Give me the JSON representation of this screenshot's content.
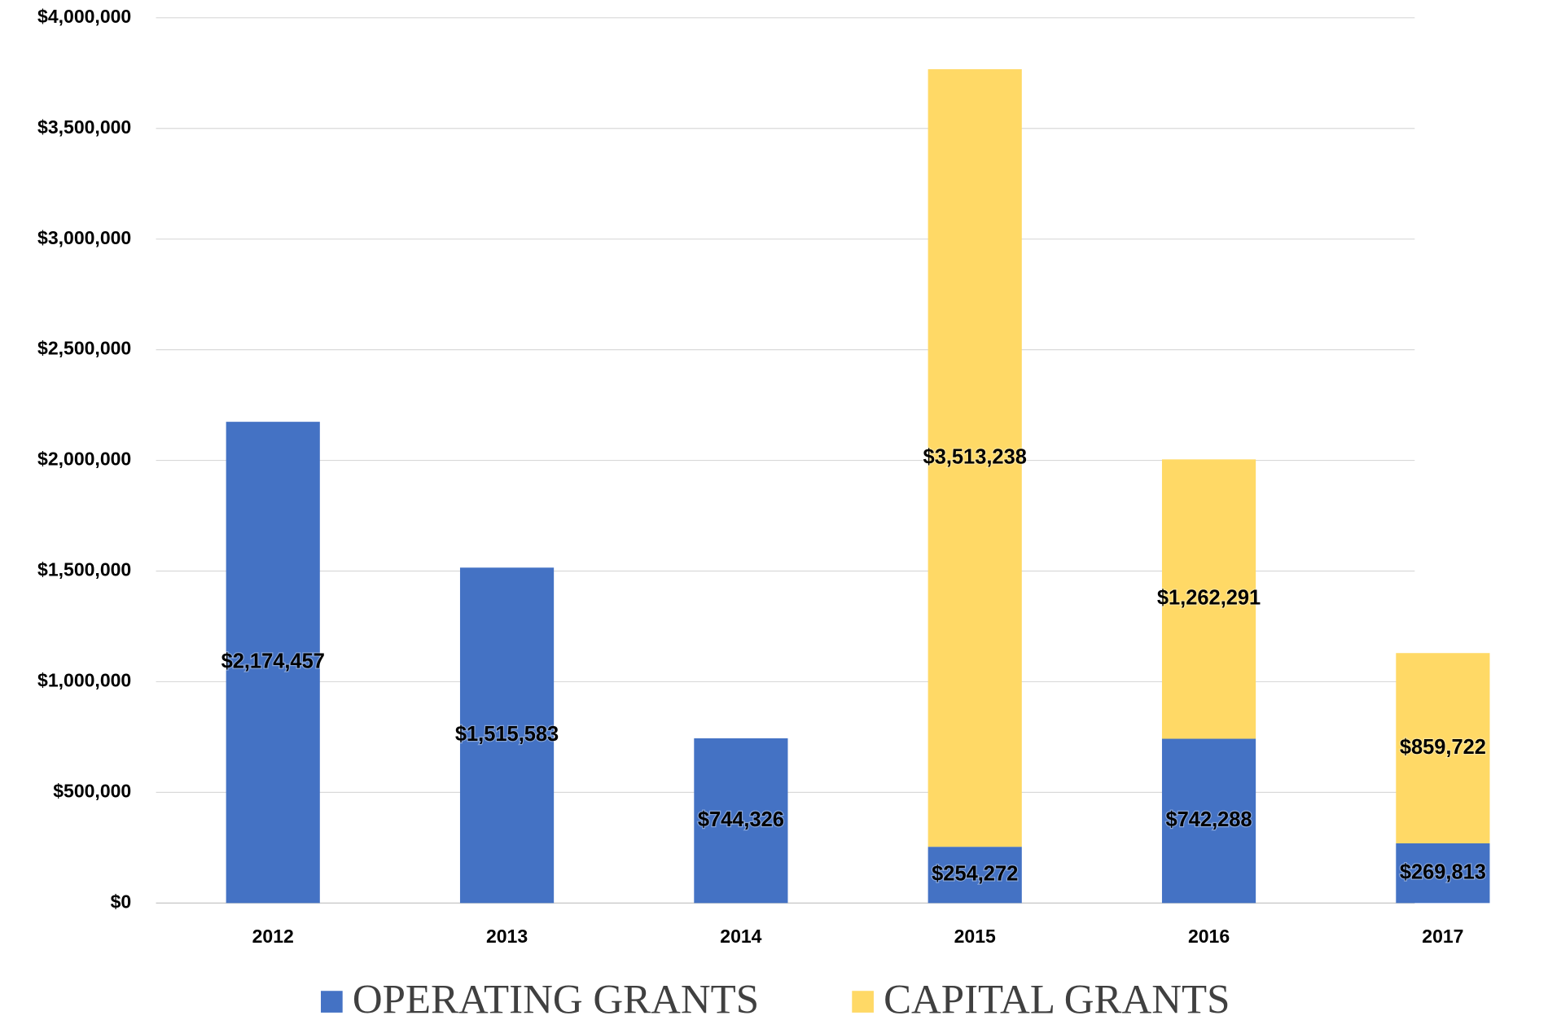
{
  "chart_data": {
    "type": "stacked-bar",
    "categories": [
      "2012",
      "2013",
      "2014",
      "2015",
      "2016",
      "2017"
    ],
    "series": [
      {
        "name": "OPERATING GRANTS",
        "color": "#4472c4",
        "values": [
          2174457,
          1515583,
          744326,
          254272,
          742288,
          269813
        ],
        "value_labels": [
          "$2,174,457",
          "$1,515,583",
          "$744,326",
          "$254,272",
          "$742,288",
          "$269,813"
        ]
      },
      {
        "name": "CAPITAL GRANTS",
        "color": "#ffd966",
        "values": [
          null,
          null,
          null,
          3513238,
          1262291,
          859722
        ],
        "value_labels": [
          null,
          null,
          null,
          "$3,513,238",
          "$1,262,291",
          "$859,722"
        ]
      }
    ],
    "ylim": [
      0,
      4000000
    ],
    "yticks": [
      {
        "value": 0,
        "label": "$0"
      },
      {
        "value": 500000,
        "label": "$500,000"
      },
      {
        "value": 1000000,
        "label": "$1,000,000"
      },
      {
        "value": 1500000,
        "label": "$1,500,000"
      },
      {
        "value": 2000000,
        "label": "$2,000,000"
      },
      {
        "value": 2500000,
        "label": "$2,500,000"
      },
      {
        "value": 3000000,
        "label": "$3,000,000"
      },
      {
        "value": 3500000,
        "label": "$3,500,000"
      },
      {
        "value": 4000000,
        "label": "$4,000,000"
      }
    ],
    "grid": true,
    "legend": "bottom"
  }
}
